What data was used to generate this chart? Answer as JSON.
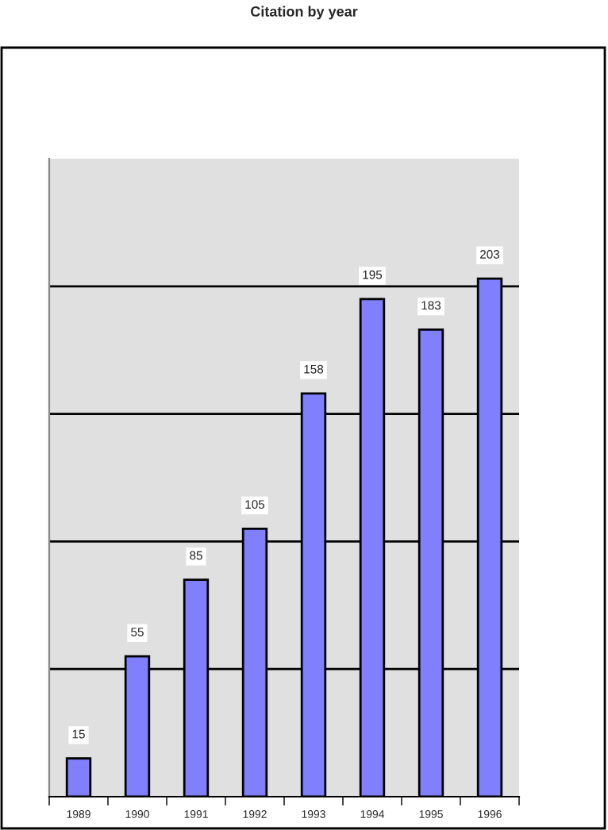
{
  "chart_data": {
    "type": "bar",
    "title": "Citation by year",
    "categories": [
      "1989",
      "1990",
      "1991",
      "1992",
      "1993",
      "1994",
      "1995",
      "1996"
    ],
    "values": [
      15,
      55,
      85,
      105,
      158,
      195,
      183,
      203
    ],
    "color": "#8080ff",
    "data_labels": true,
    "ylim": [
      0,
      250
    ],
    "yticks": [
      {
        "value": 50,
        "label": null
      },
      {
        "value": 100,
        "label": null
      },
      {
        "value": 150,
        "label": null
      },
      {
        "value": 200,
        "label": null
      }
    ],
    "grid": "y",
    "tick_labels": "x"
  }
}
